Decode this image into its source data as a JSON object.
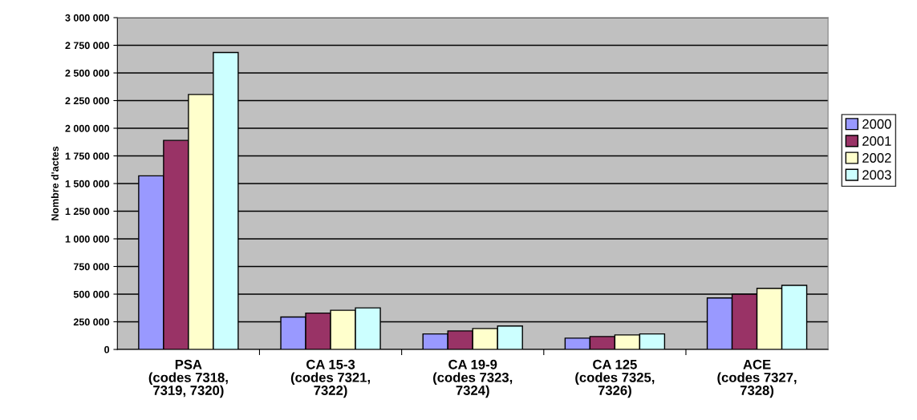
{
  "chart_data": {
    "type": "bar",
    "ylabel": "Nombre d'actes",
    "categories": [
      "PSA\n(codes 7318,\n7319, 7320)",
      "CA 15-3\n(codes 7321,\n7322)",
      "CA 19-9\n(codes 7323,\n7324)",
      "CA 125\n(codes 7325,\n7326)",
      "ACE\n(codes 7327,\n7328)"
    ],
    "series": [
      {
        "name": "2000",
        "color": "#9999ff",
        "values": [
          1570000,
          293000,
          140000,
          102000,
          465000
        ]
      },
      {
        "name": "2001",
        "color": "#993366",
        "values": [
          1890000,
          329000,
          167000,
          117000,
          500000
        ]
      },
      {
        "name": "2002",
        "color": "#ffffcc",
        "values": [
          2305000,
          354000,
          189000,
          131000,
          552000
        ]
      },
      {
        "name": "2003",
        "color": "#ccffff",
        "values": [
          2685000,
          376000,
          212000,
          140000,
          580000
        ]
      }
    ],
    "ylim": [
      0,
      3000000
    ],
    "yticks": [
      {
        "value": 0,
        "label": "0"
      },
      {
        "value": 250000,
        "label": "250 000"
      },
      {
        "value": 500000,
        "label": "500 000"
      },
      {
        "value": 750000,
        "label": "750 000"
      },
      {
        "value": 1000000,
        "label": "1 000 000"
      },
      {
        "value": 1250000,
        "label": "1 250 000"
      },
      {
        "value": 1500000,
        "label": "1 500 000"
      },
      {
        "value": 1750000,
        "label": "1 750 000"
      },
      {
        "value": 2000000,
        "label": "2 000 000"
      },
      {
        "value": 2250000,
        "label": "2 250 000"
      },
      {
        "value": 2500000,
        "label": "2 500 000"
      },
      {
        "value": 2750000,
        "label": "2 750 000"
      },
      {
        "value": 3000000,
        "label": "3 000 000"
      }
    ],
    "grid": "y",
    "legend": "right"
  }
}
